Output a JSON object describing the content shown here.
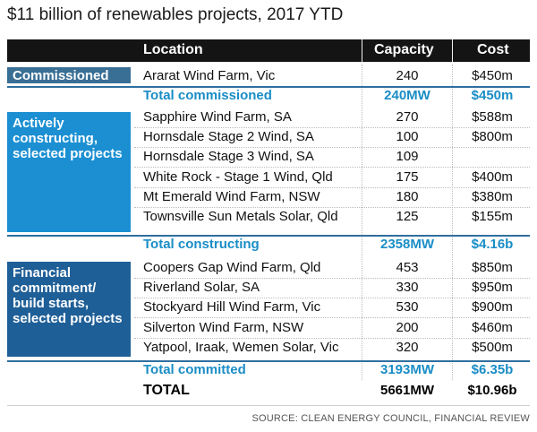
{
  "title": "$11 billion of renewables projects, 2017 YTD",
  "chart_data": {
    "type": "table",
    "columns": [
      "Location",
      "Capacity",
      "Cost"
    ],
    "groups": [
      {
        "label": "Commissioned",
        "color": "#3a6f95",
        "rows": [
          {
            "location": "Ararat Wind Farm, Vic",
            "capacity": "240",
            "cost": "$450m"
          }
        ],
        "total": {
          "label": "Total commissioned",
          "capacity": "240MW",
          "cost": "$450m"
        }
      },
      {
        "label": "Actively constructing, selected projects",
        "color": "#1b8fd2",
        "rows": [
          {
            "location": "Sapphire Wind Farm, SA",
            "capacity": "270",
            "cost": "$588m"
          },
          {
            "location": "Hornsdale Stage 2 Wind, SA",
            "capacity": "100",
            "cost": "$800m"
          },
          {
            "location": "Hornsdale Stage 3 Wind, SA",
            "capacity": "109",
            "cost": ""
          },
          {
            "location": "White Rock - Stage 1 Wind, Qld",
            "capacity": "175",
            "cost": "$400m"
          },
          {
            "location": "Mt Emerald Wind Farm, NSW",
            "capacity": "180",
            "cost": "$380m"
          },
          {
            "location": "Townsville Sun Metals Solar, Qld",
            "capacity": "125",
            "cost": "$155m"
          }
        ],
        "total": {
          "label": "Total constructing",
          "capacity": "2358MW",
          "cost": "$4.16b"
        }
      },
      {
        "label": "Financial commitment/ build starts, selected projects",
        "color": "#1f5f97",
        "rows": [
          {
            "location": "Coopers Gap Wind Farm, Qld",
            "capacity": "453",
            "cost": "$850m"
          },
          {
            "location": "Riverland Solar, SA",
            "capacity": "330",
            "cost": "$950m"
          },
          {
            "location": "Stockyard Hill Wind Farm, Vic",
            "capacity": "530",
            "cost": "$900m"
          },
          {
            "location": "Silverton Wind Farm, NSW",
            "capacity": "200",
            "cost": "$460m"
          },
          {
            "location": "Yatpool, Iraak, Wemen Solar, Vic",
            "capacity": "320",
            "cost": "$500m"
          }
        ],
        "total": {
          "label": "Total committed",
          "capacity": "3193MW",
          "cost": "$6.35b"
        }
      }
    ],
    "grand_total": {
      "label": "TOTAL",
      "capacity": "5661MW",
      "cost": "$10.96b"
    }
  },
  "source": "SOURCE: CLEAN ENERGY COUNCIL, FINANCIAL REVIEW"
}
